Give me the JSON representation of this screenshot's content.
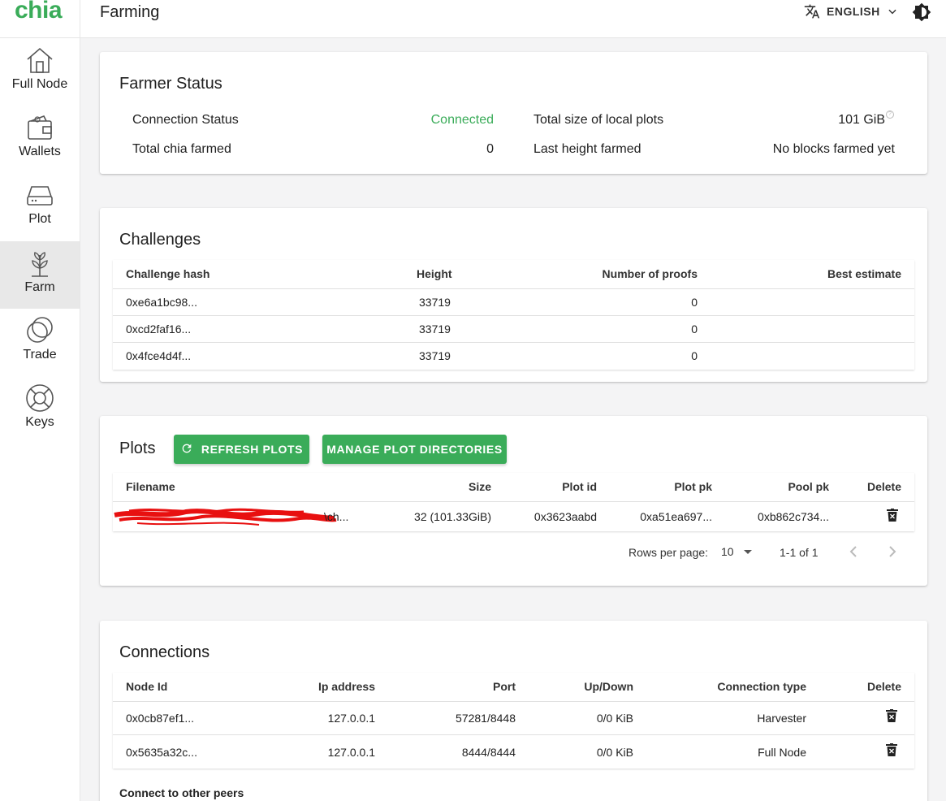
{
  "header": {
    "logo": "chia",
    "title": "Farming",
    "language": "ENGLISH"
  },
  "sidebar": {
    "items": [
      {
        "label": "Full Node",
        "icon": "home-icon"
      },
      {
        "label": "Wallets",
        "icon": "wallet-icon"
      },
      {
        "label": "Plot",
        "icon": "hard-drive-icon"
      },
      {
        "label": "Farm",
        "icon": "plant-icon",
        "active": true
      },
      {
        "label": "Trade",
        "icon": "trade-circles-icon"
      },
      {
        "label": "Keys",
        "icon": "lifebuoy-icon"
      }
    ]
  },
  "farmer_status": {
    "title": "Farmer Status",
    "connection_status_label": "Connection Status",
    "connection_status_value": "Connected",
    "total_size_label": "Total size of local plots",
    "total_size_value": "101 GiB",
    "total_farmed_label": "Total chia farmed",
    "total_farmed_value": "0",
    "last_height_label": "Last height farmed",
    "last_height_value": "No blocks farmed yet"
  },
  "challenges": {
    "title": "Challenges",
    "columns": [
      "Challenge hash",
      "Height",
      "Number of proofs",
      "Best estimate"
    ],
    "rows": [
      {
        "hash": "0xe6a1bc98...",
        "height": "33719",
        "proofs": "0",
        "estimate": ""
      },
      {
        "hash": "0xcd2faf16...",
        "height": "33719",
        "proofs": "0",
        "estimate": ""
      },
      {
        "hash": "0x4fce4d4f...",
        "height": "33719",
        "proofs": "0",
        "estimate": ""
      }
    ]
  },
  "plots": {
    "title": "Plots",
    "refresh_label": "REFRESH PLOTS",
    "manage_label": "MANAGE PLOT DIRECTORIES",
    "columns": [
      "Filename",
      "Size",
      "Plot id",
      "Plot pk",
      "Pool pk",
      "Delete"
    ],
    "rows": [
      {
        "filename": "\\ch...",
        "size": "32 (101.33GiB)",
        "plot_id": "0x3623aabd",
        "plot_pk": "0xa51ea697...",
        "pool_pk": "0xb862c734..."
      }
    ],
    "rows_per_page_label": "Rows per page:",
    "rows_per_page_value": "10",
    "pagination": "1-1 of 1"
  },
  "connections": {
    "title": "Connections",
    "columns": [
      "Node Id",
      "Ip address",
      "Port",
      "Up/Down",
      "Connection type",
      "Delete"
    ],
    "rows": [
      {
        "node_id": "0x0cb87ef1...",
        "ip": "127.0.0.1",
        "port": "57281/8448",
        "updown": "0/0 KiB",
        "type": "Harvester"
      },
      {
        "node_id": "0x5635a32c...",
        "ip": "127.0.0.1",
        "port": "8444/8444",
        "updown": "0/0 KiB",
        "type": "Full Node"
      }
    ],
    "connect_label": "Connect to other peers"
  },
  "colors": {
    "accent": "#3aac59",
    "redaction": "#ee1111"
  }
}
